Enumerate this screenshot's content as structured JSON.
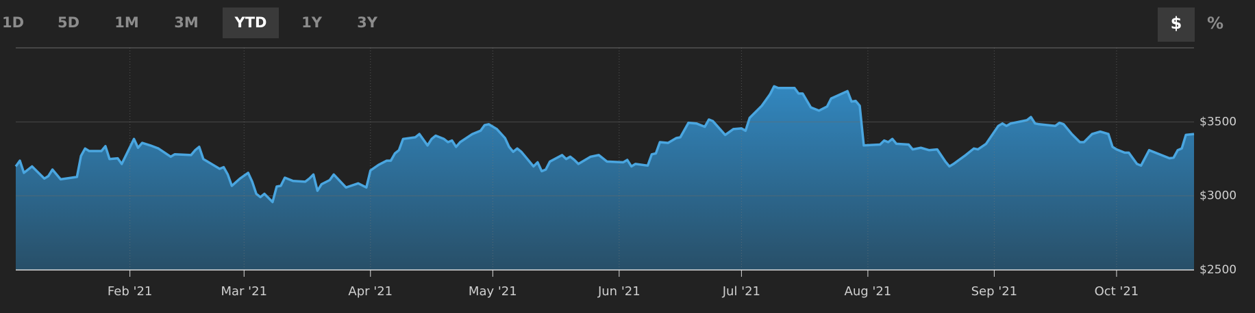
{
  "range_tabs": [
    {
      "label": "1D",
      "selected": false
    },
    {
      "label": "5D",
      "selected": false
    },
    {
      "label": "1M",
      "selected": false
    },
    {
      "label": "3M",
      "selected": false
    },
    {
      "label": "YTD",
      "selected": true
    },
    {
      "label": "1Y",
      "selected": false
    },
    {
      "label": "3Y",
      "selected": false
    }
  ],
  "unit_toggles": [
    {
      "label": "$",
      "selected": true
    },
    {
      "label": "%",
      "selected": false
    }
  ],
  "chart_data": {
    "type": "area",
    "color": "#4aa6e0",
    "x": [
      0,
      1,
      2,
      4,
      7,
      8,
      9,
      11,
      15,
      16,
      17,
      18,
      21,
      22,
      23,
      25,
      26,
      29,
      30,
      31,
      33,
      35,
      38,
      39,
      43,
      44,
      45,
      46,
      50,
      51,
      52,
      53,
      55,
      57,
      58,
      59,
      60,
      61,
      63,
      64,
      65,
      66,
      68,
      71,
      72,
      73,
      74,
      75,
      77,
      78,
      81,
      84,
      86,
      87,
      89,
      91,
      92,
      93,
      94,
      95,
      98,
      99,
      101,
      102,
      103,
      105,
      106,
      107,
      108,
      109,
      112,
      114,
      115,
      116,
      118,
      120,
      121,
      122,
      123,
      124,
      127,
      128,
      129,
      130,
      131,
      134,
      135,
      136,
      137,
      138,
      141,
      143,
      145,
      149,
      150,
      151,
      152,
      155,
      156,
      157,
      158,
      160,
      162,
      163,
      165,
      167,
      169,
      170,
      171,
      174,
      176,
      178,
      179,
      180,
      183,
      185,
      186,
      187,
      191,
      192,
      193,
      195,
      197,
      199,
      200,
      204,
      205,
      206,
      207,
      208,
      212,
      213,
      214,
      215,
      216,
      219,
      220,
      222,
      224,
      226,
      228,
      229,
      230,
      233,
      235,
      236,
      238,
      241,
      242,
      243,
      244,
      248,
      249,
      250,
      251,
      255,
      256,
      257,
      259,
      261,
      262,
      264,
      266,
      268,
      269,
      270,
      272,
      273,
      275,
      276,
      278,
      280,
      283,
      284,
      285,
      286,
      287,
      289
    ],
    "values": [
      3199,
      3238,
      3156,
      3199,
      3117,
      3134,
      3178,
      3112,
      3128,
      3270,
      3320,
      3303,
      3303,
      3336,
      3249,
      3254,
      3216,
      3385,
      3325,
      3358,
      3341,
      3320,
      3265,
      3281,
      3276,
      3309,
      3331,
      3249,
      3183,
      3194,
      3145,
      3068,
      3117,
      3156,
      3096,
      3014,
      2992,
      3014,
      2959,
      3063,
      3068,
      3123,
      3101,
      3096,
      3117,
      3145,
      3035,
      3079,
      3107,
      3145,
      3057,
      3085,
      3057,
      3172,
      3210,
      3238,
      3238,
      3287,
      3309,
      3385,
      3396,
      3418,
      3341,
      3385,
      3407,
      3385,
      3363,
      3374,
      3331,
      3363,
      3418,
      3440,
      3478,
      3484,
      3451,
      3391,
      3331,
      3298,
      3320,
      3298,
      3199,
      3227,
      3167,
      3178,
      3232,
      3276,
      3249,
      3265,
      3243,
      3216,
      3265,
      3276,
      3232,
      3227,
      3243,
      3199,
      3216,
      3205,
      3281,
      3287,
      3363,
      3358,
      3391,
      3396,
      3494,
      3489,
      3467,
      3516,
      3505,
      3412,
      3451,
      3456,
      3440,
      3527,
      3609,
      3686,
      3740,
      3729,
      3729,
      3691,
      3691,
      3598,
      3576,
      3604,
      3658,
      3708,
      3637,
      3642,
      3609,
      3341,
      3347,
      3374,
      3363,
      3385,
      3352,
      3347,
      3314,
      3325,
      3309,
      3314,
      3232,
      3199,
      3216,
      3276,
      3320,
      3314,
      3352,
      3473,
      3489,
      3473,
      3489,
      3511,
      3533,
      3489,
      3484,
      3473,
      3494,
      3484,
      3418,
      3363,
      3363,
      3418,
      3434,
      3418,
      3331,
      3314,
      3292,
      3292,
      3216,
      3205,
      3309,
      3287,
      3254,
      3259,
      3309,
      3320,
      3412,
      3418
    ],
    "xlim": [
      0,
      289
    ],
    "xticks": [
      {
        "value": 28,
        "label": "Feb '21"
      },
      {
        "value": 56,
        "label": "Mar '21"
      },
      {
        "value": 87,
        "label": "Apr '21"
      },
      {
        "value": 117,
        "label": "May '21"
      },
      {
        "value": 148,
        "label": "Jun '21"
      },
      {
        "value": 178,
        "label": "Jul '21"
      },
      {
        "value": 209,
        "label": "Aug '21"
      },
      {
        "value": 240,
        "label": "Sep '21"
      },
      {
        "value": 270,
        "label": "Oct '21"
      }
    ],
    "ylim": [
      2500,
      4000
    ],
    "yticks": [
      {
        "value": 2500,
        "label": "$2500"
      },
      {
        "value": 3000,
        "label": "$3000"
      },
      {
        "value": 3500,
        "label": "$3500"
      }
    ],
    "grid": true
  }
}
